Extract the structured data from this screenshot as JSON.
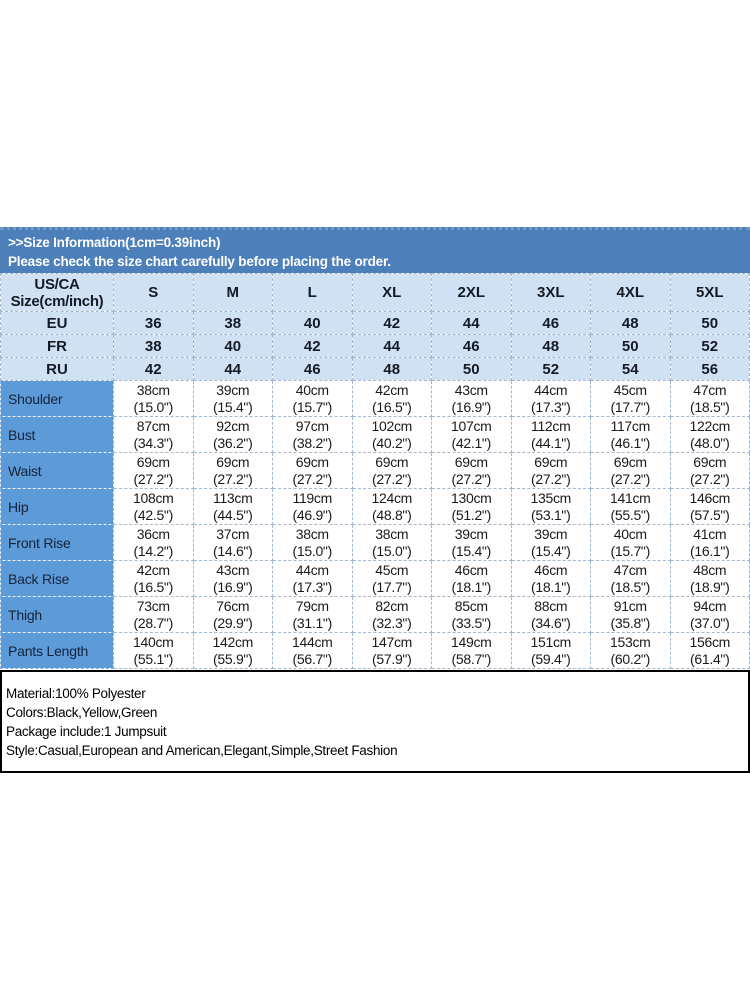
{
  "banner": {
    "title": ">>Size Information(1cm=0.39inch)",
    "subtitle": "Please check the size chart carefully before placing the order."
  },
  "size_table": {
    "corner": {
      "line1": "US/CA",
      "line2": "Size(cm/inch)"
    },
    "size_headers": [
      "S",
      "M",
      "L",
      "XL",
      "2XL",
      "3XL",
      "4XL",
      "5XL"
    ],
    "region_rows": [
      {
        "label": "EU",
        "values": [
          "36",
          "38",
          "40",
          "42",
          "44",
          "46",
          "48",
          "50"
        ]
      },
      {
        "label": "FR",
        "values": [
          "38",
          "40",
          "42",
          "44",
          "46",
          "48",
          "50",
          "52"
        ]
      },
      {
        "label": "RU",
        "values": [
          "42",
          "44",
          "46",
          "48",
          "50",
          "52",
          "54",
          "56"
        ]
      }
    ],
    "measurement_rows": [
      {
        "label": "Shoulder",
        "cm": [
          "38cm",
          "39cm",
          "40cm",
          "42cm",
          "43cm",
          "44cm",
          "45cm",
          "47cm"
        ],
        "inch": [
          "(15.0\")",
          "(15.4\")",
          "(15.7\")",
          "(16.5\")",
          "(16.9\")",
          "(17.3\")",
          "(17.7\")",
          "(18.5\")"
        ]
      },
      {
        "label": "Bust",
        "cm": [
          "87cm",
          "92cm",
          "97cm",
          "102cm",
          "107cm",
          "112cm",
          "117cm",
          "122cm"
        ],
        "inch": [
          "(34.3\")",
          "(36.2\")",
          "(38.2\")",
          "(40.2\")",
          "(42.1\")",
          "(44.1\")",
          "(46.1\")",
          "(48.0\")"
        ]
      },
      {
        "label": "Waist",
        "cm": [
          "69cm",
          "69cm",
          "69cm",
          "69cm",
          "69cm",
          "69cm",
          "69cm",
          "69cm"
        ],
        "inch": [
          "(27.2\")",
          "(27.2\")",
          "(27.2\")",
          "(27.2\")",
          "(27.2\")",
          "(27.2\")",
          "(27.2\")",
          "(27.2\")"
        ]
      },
      {
        "label": "Hip",
        "cm": [
          "108cm",
          "113cm",
          "119cm",
          "124cm",
          "130cm",
          "135cm",
          "141cm",
          "146cm"
        ],
        "inch": [
          "(42.5\")",
          "(44.5\")",
          "(46.9\")",
          "(48.8\")",
          "(51.2\")",
          "(53.1\")",
          "(55.5\")",
          "(57.5\")"
        ]
      },
      {
        "label": "Front Rise",
        "cm": [
          "36cm",
          "37cm",
          "38cm",
          "38cm",
          "39cm",
          "39cm",
          "40cm",
          "41cm"
        ],
        "inch": [
          "(14.2\")",
          "(14.6\")",
          "(15.0\")",
          "(15.0\")",
          "(15.4\")",
          "(15.4\")",
          "(15.7\")",
          "(16.1\")"
        ]
      },
      {
        "label": "Back Rise",
        "cm": [
          "42cm",
          "43cm",
          "44cm",
          "45cm",
          "46cm",
          "46cm",
          "47cm",
          "48cm"
        ],
        "inch": [
          "(16.5\")",
          "(16.9\")",
          "(17.3\")",
          "(17.7\")",
          "(18.1\")",
          "(18.1\")",
          "(18.5\")",
          "(18.9\")"
        ]
      },
      {
        "label": "Thigh",
        "cm": [
          "73cm",
          "76cm",
          "79cm",
          "82cm",
          "85cm",
          "88cm",
          "91cm",
          "94cm"
        ],
        "inch": [
          "(28.7\")",
          "(29.9\")",
          "(31.1\")",
          "(32.3\")",
          "(33.5\")",
          "(34.6\")",
          "(35.8\")",
          "(37.0\")"
        ]
      },
      {
        "label": "Pants Length",
        "cm": [
          "140cm",
          "142cm",
          "144cm",
          "147cm",
          "149cm",
          "151cm",
          "153cm",
          "156cm"
        ],
        "inch": [
          "(55.1\")",
          "(55.9\")",
          "(56.7\")",
          "(57.9\")",
          "(58.7\")",
          "(59.4\")",
          "(60.2\")",
          "(61.4\")"
        ]
      }
    ]
  },
  "details_box": {
    "lines": [
      "Material:100% Polyester",
      "Colors:Black,Yellow,Green",
      "Package include:1 Jumpsuit",
      "Style:Casual,European and American,Elegant,Simple,Street Fashion"
    ]
  },
  "colors": {
    "banner_bg": "#4d7fba",
    "banner_edge": "#6e99c9",
    "header_cell_bg": "#cfe1f2",
    "label_cell_bg": "#5c9ad8",
    "table_text": "#141b26"
  }
}
